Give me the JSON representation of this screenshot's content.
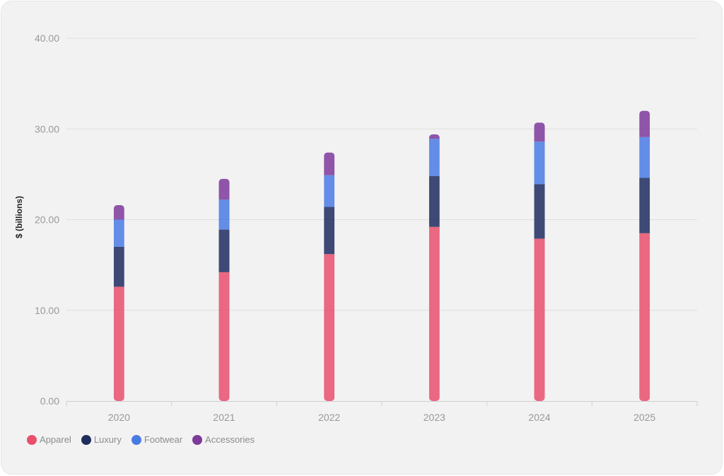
{
  "chart_data": {
    "type": "bar",
    "stacked": true,
    "categories": [
      "2020",
      "2021",
      "2022",
      "2023",
      "2024",
      "2025"
    ],
    "series": [
      {
        "name": "Apparel",
        "color": "#e9506c",
        "values": [
          12.6,
          14.2,
          16.2,
          19.2,
          17.9,
          18.5
        ]
      },
      {
        "name": "Luxury",
        "color": "#1f2d5e",
        "values": [
          4.4,
          4.7,
          5.2,
          5.6,
          6.0,
          6.1
        ]
      },
      {
        "name": "Footwear",
        "color": "#4a7be3",
        "values": [
          3.0,
          3.3,
          3.5,
          4.1,
          4.7,
          4.5
        ]
      },
      {
        "name": "Accessories",
        "color": "#7e3a9b",
        "values": [
          1.6,
          2.3,
          2.5,
          0.5,
          2.1,
          2.9
        ]
      }
    ],
    "ylabel": "$ (billions)",
    "ylim": [
      0,
      40
    ],
    "yticks": [
      "0.00",
      "10.00",
      "20.00",
      "30.00",
      "40.00"
    ],
    "grid": true,
    "legend_position": "bottom-left"
  }
}
